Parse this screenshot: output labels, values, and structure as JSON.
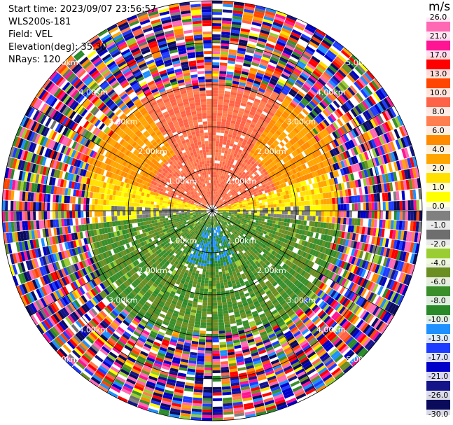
{
  "header": {
    "start_time": "Start time: 2023/09/07 23:56:57",
    "instrument": "WLS200s-181",
    "field": "Field: VEL",
    "elevation": "Elevation(deg): 35.30",
    "nrays": "NRays: 120"
  },
  "colorbar": {
    "unit": "m/s",
    "colors": [
      "#0b0b5c",
      "#15158a",
      "#0000c8",
      "#1e3cff",
      "#1e90ff",
      "#2a8a2a",
      "#3a8f2a",
      "#6b8e23",
      "#9acd32",
      "#6e6e6e",
      "#808080",
      "#ffff00",
      "#ffe000",
      "#ffa500",
      "#ff8c00",
      "#ff7f50",
      "#ff6347",
      "#ff4500",
      "#ff0000",
      "#ff1493",
      "#ff69b4"
    ],
    "ticks": [
      "-30.0",
      "-26.0",
      "-21.0",
      "-17.0",
      "-13.0",
      "-10.0",
      "-8.0",
      "-6.0",
      "-4.0",
      "-2.0",
      "-1.0",
      "0.0",
      "1.0",
      "2.0",
      "4.0",
      "6.0",
      "8.0",
      "10.0",
      "13.0",
      "17.0",
      "21.0",
      "26.0"
    ]
  },
  "chart_data": {
    "type": "heatmap",
    "projection": "polar (PPI scan)",
    "field": "VEL",
    "units": "m/s",
    "nrays": 120,
    "elevation_deg": 35.3,
    "range_rings_km": [
      1.0,
      2.0,
      3.0,
      4.0,
      5.0
    ],
    "ring_labels": [
      "1.00km",
      "2.00km",
      "3.00km",
      "4.00km",
      "5.00km"
    ],
    "max_range_km": 5.0,
    "radial_guide_angles_deg": [
      0,
      30,
      60,
      90,
      120,
      150,
      180,
      210,
      240,
      270,
      300,
      330
    ],
    "approximate_velocity_pattern": [
      {
        "sector": "north (azimuth 300-60 deg), range 0-3.0 km",
        "velocity_m_s": 8.0
      },
      {
        "sector": "north-east / north-west flanks, range 1.5-3.0 km",
        "velocity_m_s": 2.0
      },
      {
        "sector": "east and west, near horizontal axis, range 0.5-2.8 km",
        "velocity_m_s": 0.0
      },
      {
        "sector": "south half, range 0-3.0 km",
        "velocity_m_s": -6.0
      },
      {
        "sector": "south, range 0.4-1.3 km",
        "velocity_m_s": -10.0
      },
      {
        "sector": "beyond about 3.0 km",
        "velocity_m_s": "noise (random values -30 to 26)"
      }
    ]
  }
}
